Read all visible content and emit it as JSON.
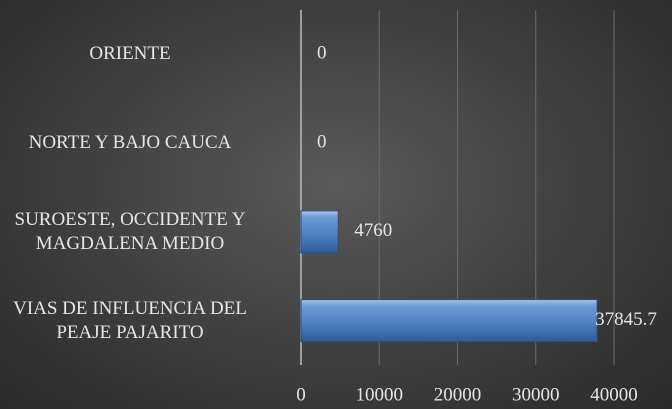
{
  "chart_data": {
    "type": "bar",
    "orientation": "horizontal",
    "categories": [
      "ORIENTE",
      "NORTE Y BAJO CAUCA",
      "SUROESTE, OCCIDENTE Y\nMAGDALENA MEDIO",
      "VIAS DE INFLUENCIA DEL\nPEAJE PAJARITO"
    ],
    "values": [
      0,
      0,
      4760,
      37845.7
    ],
    "color": "#4f81bd",
    "xlim": [
      0,
      40000
    ],
    "xticks": [
      0,
      10000,
      20000,
      30000,
      40000
    ],
    "grid": true
  }
}
